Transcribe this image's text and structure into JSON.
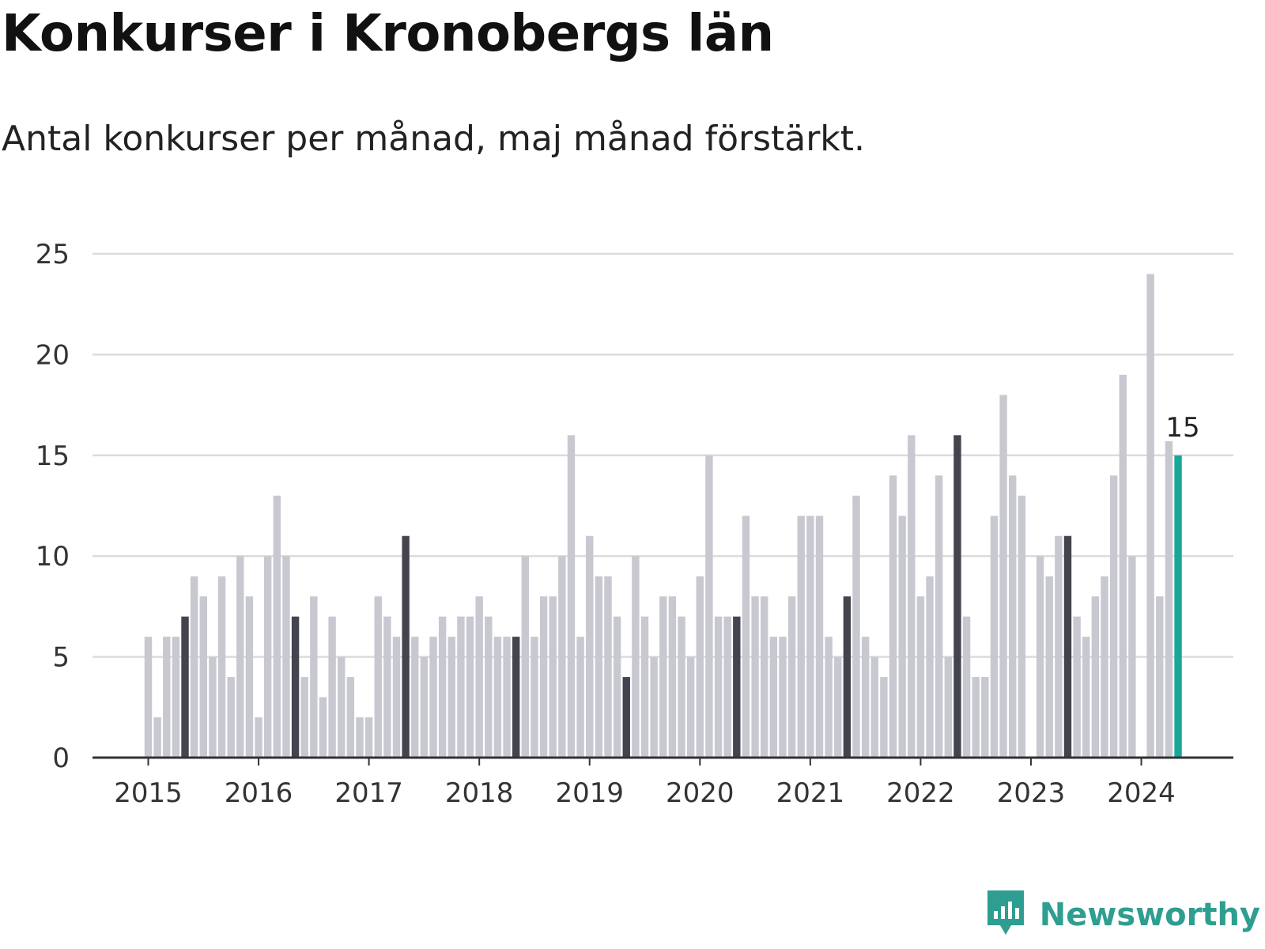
{
  "title": "Konkurser i Kronobergs län",
  "subtitle": "Antal konkurser per månad, maj månad förstärkt.",
  "brand": {
    "name": "Newsworthy",
    "icon": "newsworthy-logo-icon"
  },
  "colors": {
    "bar": "#c8c8d0",
    "highlight": "#44444f",
    "latest": "#18a899",
    "grid": "#dcdcdc",
    "axis": "#333333",
    "brand": "#2e9e90"
  },
  "chart_data": {
    "type": "bar",
    "title": "Konkurser i Kronobergs län",
    "subtitle": "Antal konkurser per månad, maj månad förstärkt.",
    "xlabel": "",
    "ylabel": "",
    "ylim": [
      0,
      25
    ],
    "yticks": [
      "0",
      "5",
      "10",
      "15",
      "20",
      "25"
    ],
    "xticks": [
      "2015",
      "2016",
      "2017",
      "2018",
      "2019",
      "2020",
      "2021",
      "2022",
      "2023",
      "2024"
    ],
    "grid": true,
    "start_month": "2015-01",
    "highlight_month": "May",
    "latest_label": "15",
    "values": [
      6,
      2,
      6,
      6,
      7,
      9,
      8,
      5,
      9,
      4,
      10,
      8,
      2,
      10,
      13,
      10,
      7,
      4,
      8,
      3,
      7,
      5,
      4,
      2,
      2,
      8,
      7,
      6,
      11,
      6,
      5,
      6,
      7,
      6,
      7,
      7,
      8,
      7,
      6,
      6,
      6,
      10,
      6,
      8,
      8,
      10,
      16,
      6,
      11,
      9,
      9,
      7,
      4,
      10,
      7,
      5,
      8,
      8,
      7,
      5,
      9,
      15,
      7,
      7,
      7,
      12,
      8,
      8,
      6,
      6,
      8,
      12,
      12,
      12,
      6,
      5,
      8,
      13,
      6,
      5,
      4,
      14,
      12,
      16,
      8,
      9,
      14,
      5,
      16,
      7,
      4,
      4,
      12,
      18,
      14,
      13,
      0,
      10,
      9,
      11,
      11,
      7,
      6,
      8,
      9,
      14,
      19,
      10,
      0,
      24,
      8,
      15.7,
      15
    ]
  }
}
